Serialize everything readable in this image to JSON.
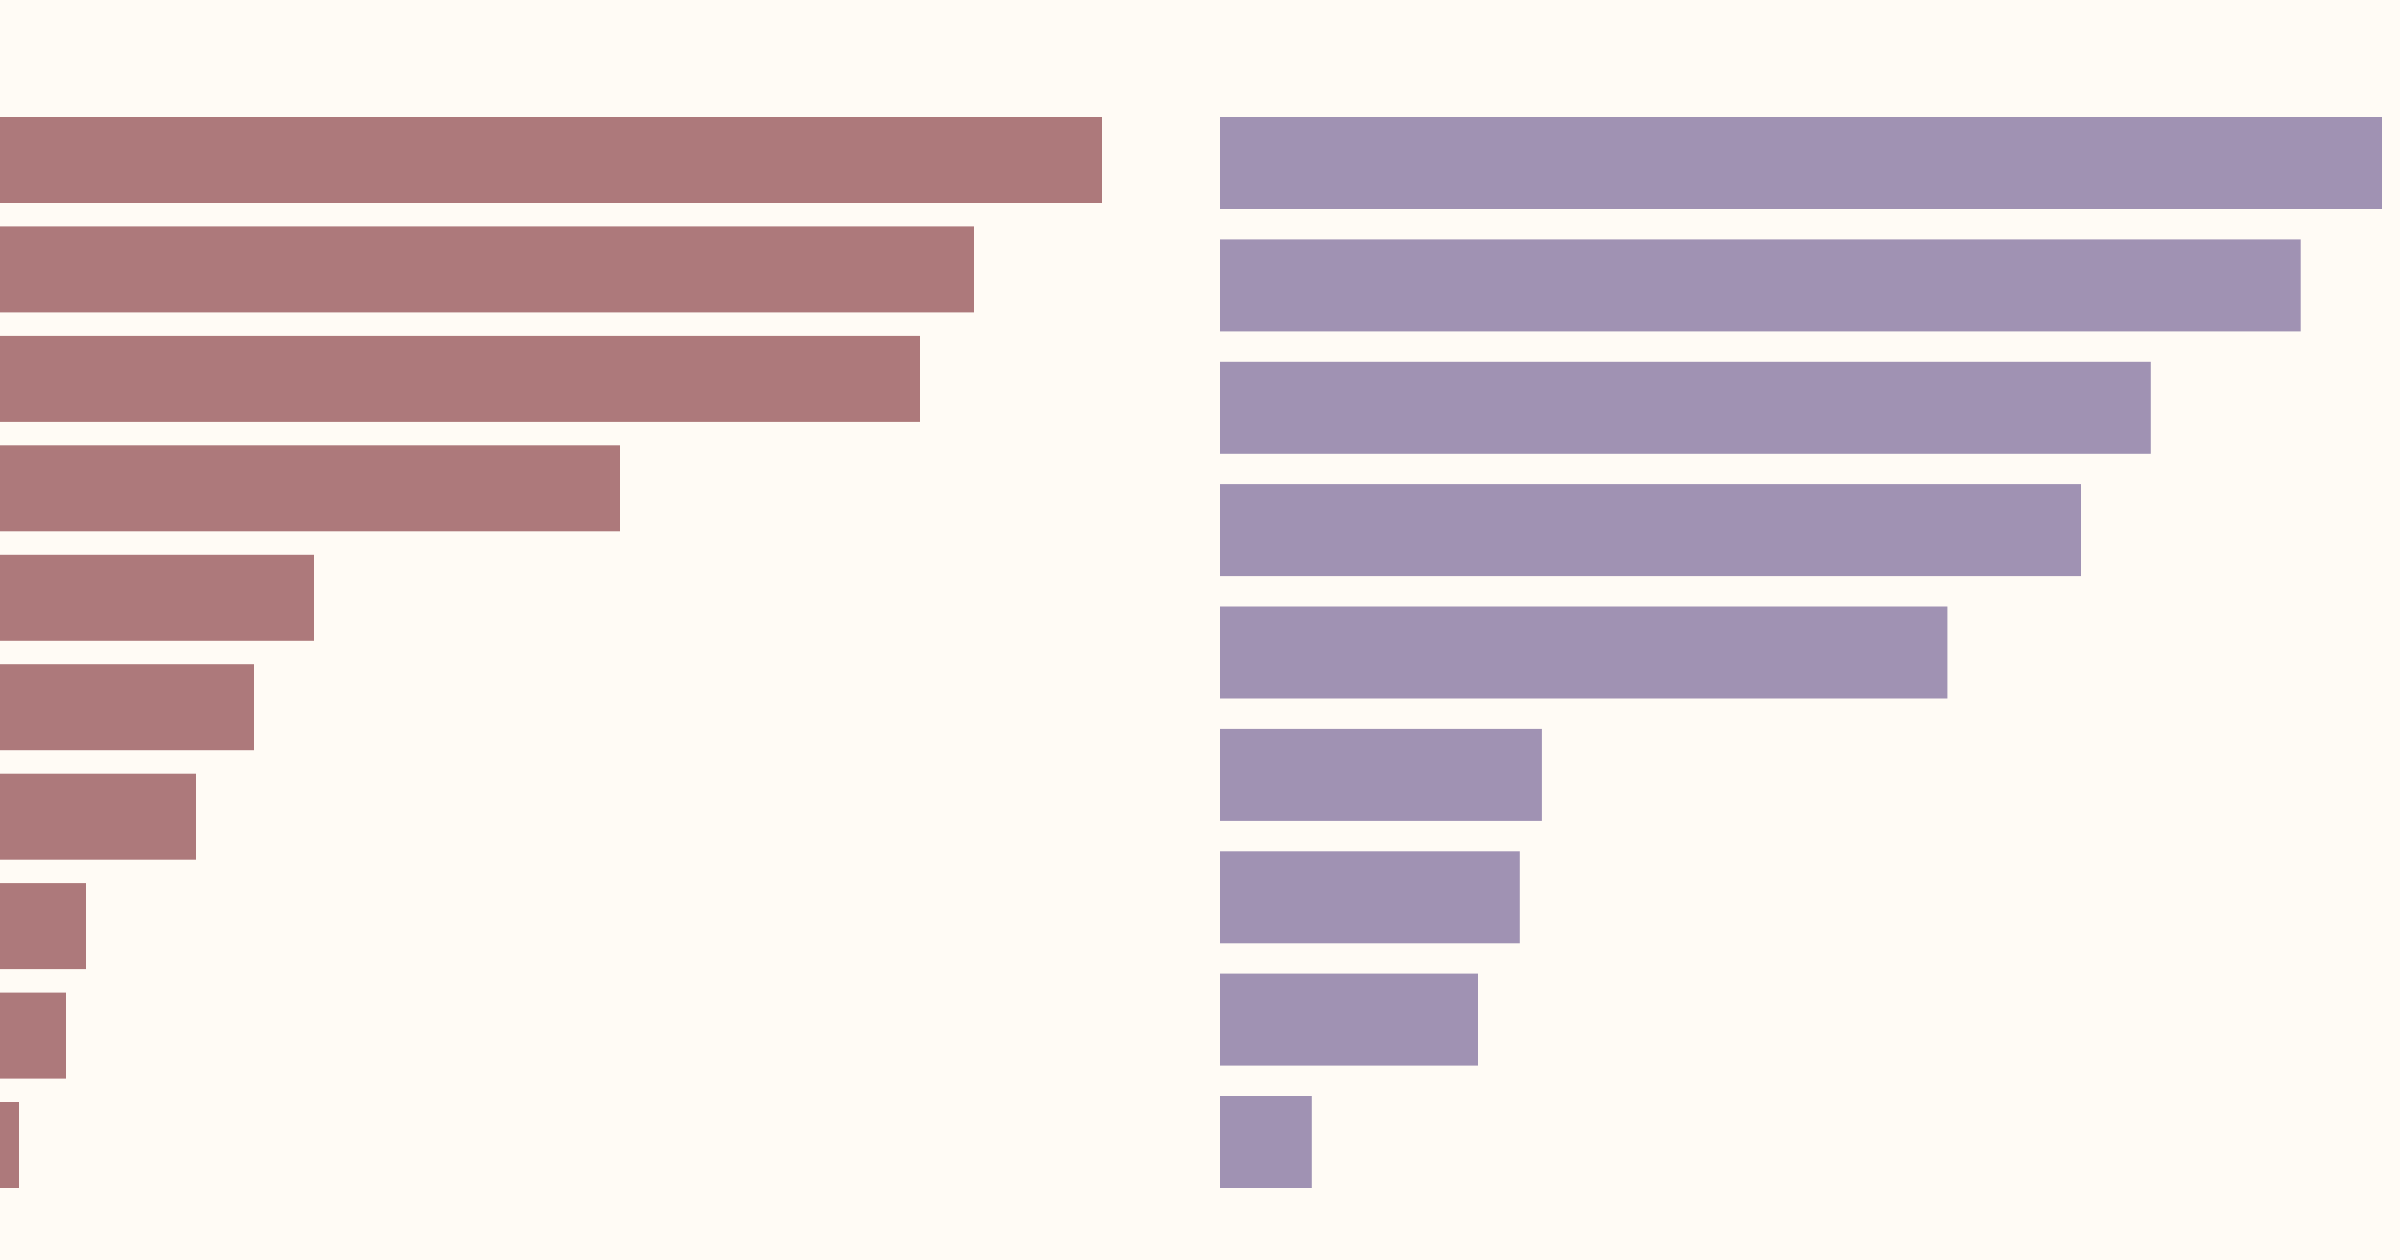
{
  "background": "#fffbf5",
  "chart_data": [
    {
      "type": "bar",
      "orientation": "horizontal",
      "color": "#ad797b",
      "values": [
        1102,
        974,
        920,
        620,
        314,
        254,
        196,
        86,
        66,
        19
      ],
      "xlim": [
        0,
        1200
      ],
      "grid": false,
      "legend": "none"
    },
    {
      "type": "bar",
      "orientation": "horizontal",
      "color": "#a092b3",
      "values": [
        1000,
        930,
        801,
        741,
        626,
        277,
        258,
        222,
        79
      ],
      "xlim": [
        0,
        1000
      ],
      "grid": false,
      "legend": "none"
    }
  ]
}
